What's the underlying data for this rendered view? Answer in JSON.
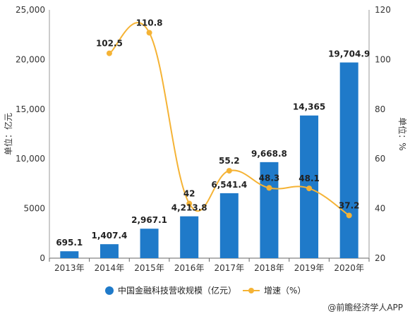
{
  "chart_data": {
    "type": "bar",
    "categories": [
      "2013年",
      "2014年",
      "2015年",
      "2016年",
      "2017年",
      "2018年",
      "2019年",
      "2020年"
    ],
    "series": [
      {
        "name": "中国金融科技营收规模（亿元）",
        "type": "bar",
        "axis": "left",
        "color": "#1f7ac9",
        "values": [
          695.1,
          1407.4,
          2967.1,
          4213.8,
          6541.4,
          9668.8,
          14365,
          19704.9
        ],
        "labels": [
          "695.1",
          "1,407.4",
          "2,967.1",
          "4,213.8",
          "6,541.4",
          "9,668.8",
          "14,365",
          "19,704.9"
        ]
      },
      {
        "name": "增速（%）",
        "type": "line",
        "axis": "right",
        "color": "#f5b335",
        "values": [
          null,
          102.5,
          110.8,
          42,
          55.2,
          48.3,
          48.1,
          37.2
        ],
        "labels": [
          "",
          "102.5",
          "110.8",
          "42",
          "55.2",
          "48.3",
          "48.1",
          "37.2"
        ]
      }
    ],
    "y_left": {
      "label": "单位：亿元",
      "ylim": [
        0,
        25000
      ],
      "ticks": [
        0,
        5000,
        10000,
        15000,
        20000,
        25000
      ],
      "tick_labels": [
        "0",
        "5000",
        "10,000",
        "15,000",
        "20,000",
        "25,000"
      ]
    },
    "y_right": {
      "label": "单位：%",
      "ylim": [
        20,
        120
      ],
      "ticks": [
        20,
        40,
        60,
        80,
        100,
        120
      ],
      "tick_labels": [
        "20",
        "40",
        "60",
        "80",
        "100",
        "120"
      ]
    },
    "grid": false,
    "legend": "bottom"
  },
  "footer": {
    "text": "@前瞻经济学人APP",
    "color": "#333333"
  }
}
